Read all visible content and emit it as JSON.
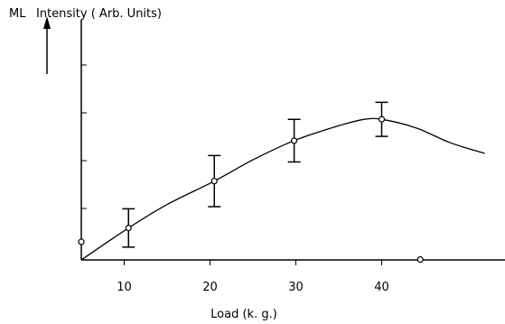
{
  "chart_data": {
    "type": "line",
    "ylabel_prefix": "ML",
    "ylabel": "Intensity ( Arb. Units)",
    "xlabel": "Load (k. g.)",
    "xticks": [
      10,
      20,
      30,
      40
    ],
    "xlim": [
      5,
      53
    ],
    "ylim": [
      0,
      10
    ],
    "grid": false,
    "series": [
      {
        "points": [
          {
            "x": 10.5,
            "y": 1.5,
            "err": 0.9
          },
          {
            "x": 20.5,
            "y": 3.7,
            "err": 1.2
          },
          {
            "x": 29.8,
            "y": 5.6,
            "err": 1.0
          },
          {
            "x": 40.0,
            "y": 6.6,
            "err": 0.8
          }
        ],
        "curve": [
          [
            5,
            0
          ],
          [
            10.5,
            1.5
          ],
          [
            15,
            2.6
          ],
          [
            20.5,
            3.7
          ],
          [
            25,
            4.7
          ],
          [
            29.8,
            5.6
          ],
          [
            35,
            6.3
          ],
          [
            38,
            6.6
          ],
          [
            40,
            6.6
          ],
          [
            44,
            6.2
          ],
          [
            48,
            5.5
          ],
          [
            52,
            5.0
          ]
        ]
      }
    ],
    "extra_points": [
      {
        "x": 5,
        "y": 0.85
      },
      {
        "x": 44.5,
        "y": 0.02
      }
    ]
  }
}
